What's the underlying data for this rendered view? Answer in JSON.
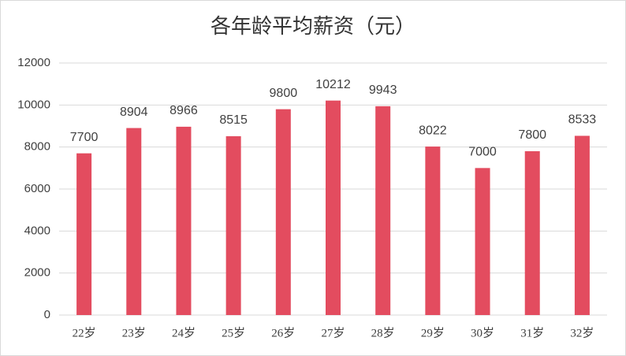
{
  "chart_data": {
    "type": "bar",
    "title": "各年龄平均薪资（元）",
    "categories": [
      "22岁",
      "23岁",
      "24岁",
      "25岁",
      "26岁",
      "27岁",
      "28岁",
      "29岁",
      "30岁",
      "31岁",
      "32岁"
    ],
    "values": [
      7700,
      8904,
      8966,
      8515,
      9800,
      10212,
      9943,
      8022,
      7000,
      7800,
      8533
    ],
    "color": "#e34c5f",
    "ylim": [
      0,
      12000
    ],
    "yticks": [
      0,
      2000,
      4000,
      6000,
      8000,
      10000,
      12000
    ],
    "grid": true,
    "data_labels": true
  }
}
